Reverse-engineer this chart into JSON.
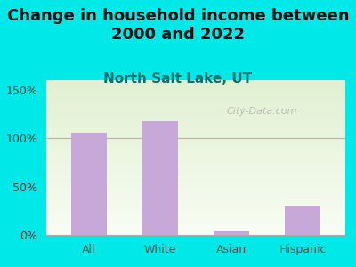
{
  "categories": [
    "All",
    "White",
    "Asian",
    "Hispanic"
  ],
  "values": [
    106,
    118,
    5,
    30
  ],
  "bar_color": "#c8a8d8",
  "title": "Change in household income between\n2000 and 2022",
  "subtitle": "North Salt Lake, UT",
  "subtitle_color": "#007070",
  "title_color": "#111111",
  "background_color": "#00e8e8",
  "plot_bg_color": "#e8f2e0",
  "ylabel_ticks": [
    0,
    50,
    100,
    150
  ],
  "ylim": [
    0,
    160
  ],
  "watermark": "City-Data.com",
  "title_fontsize": 13,
  "subtitle_fontsize": 11
}
